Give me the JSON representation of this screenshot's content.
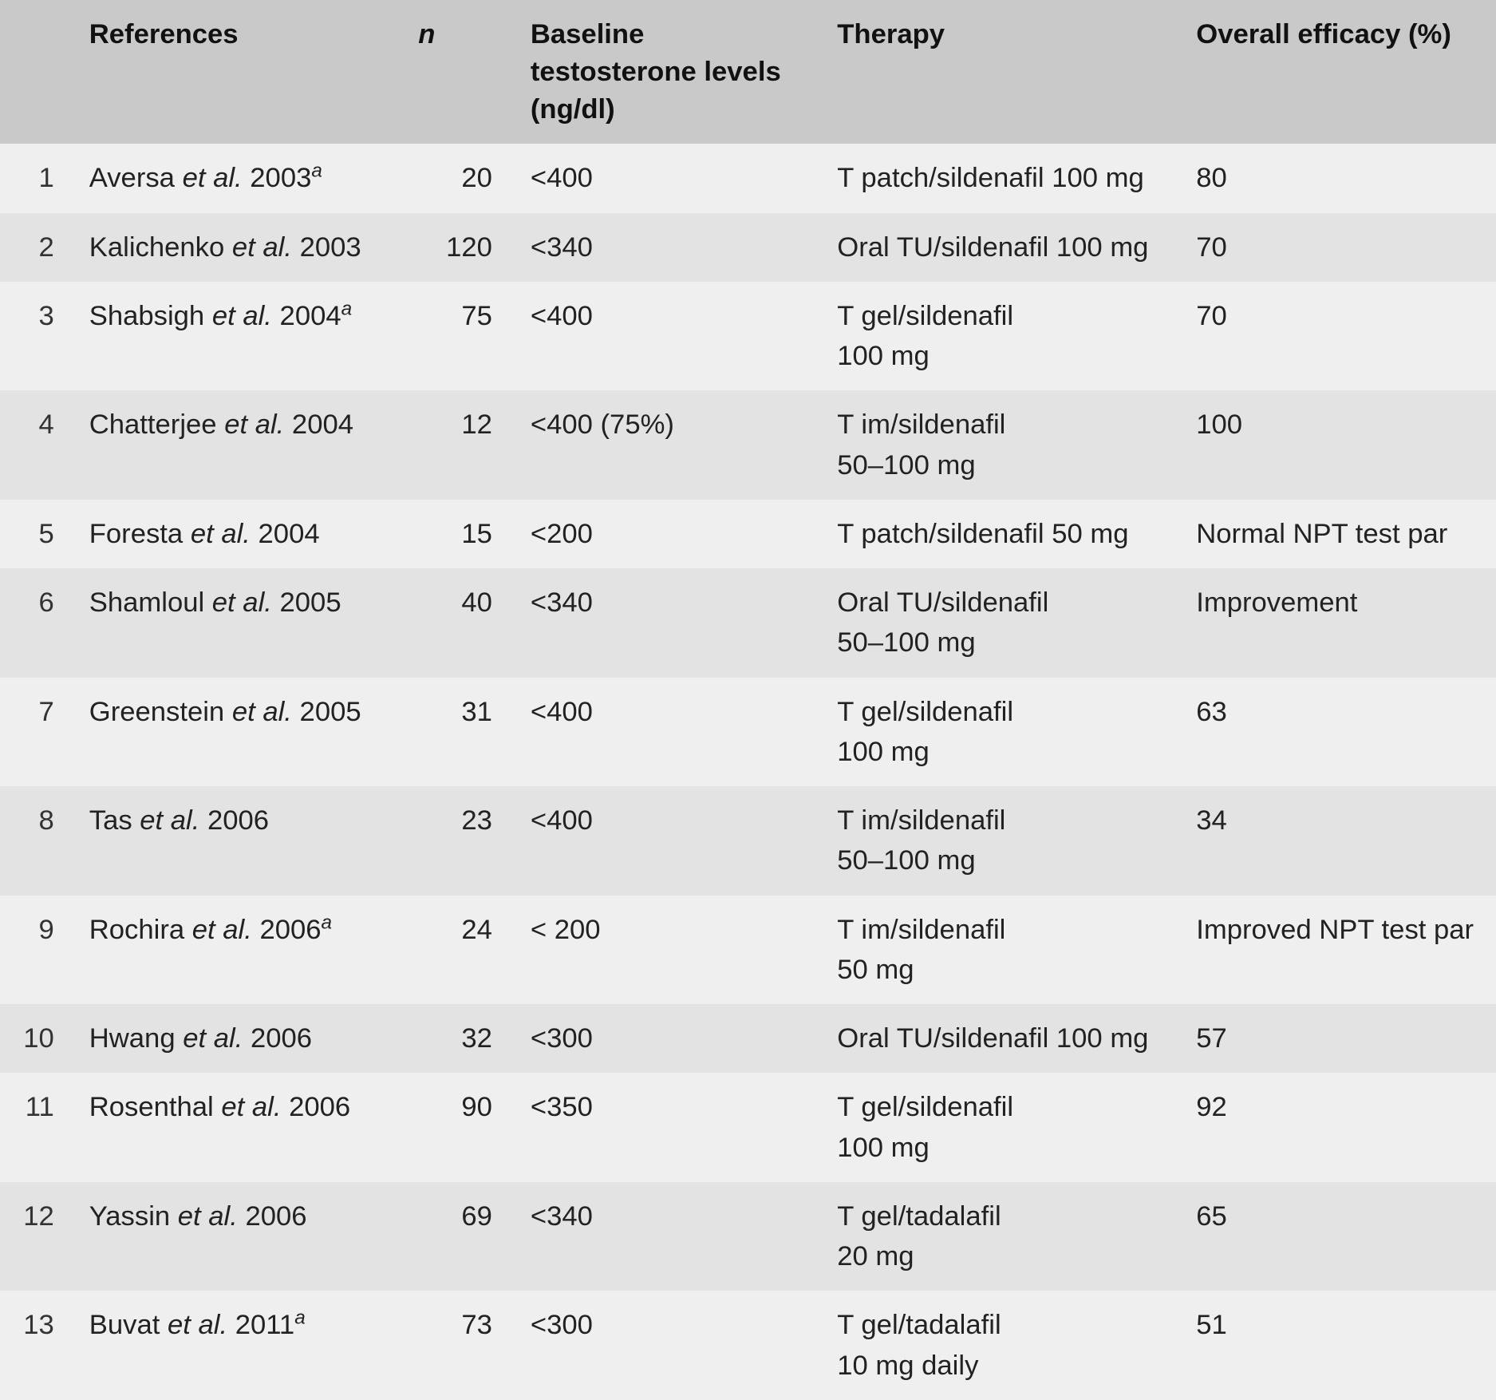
{
  "table": {
    "type": "table",
    "font_family": "Segoe UI / Helvetica Neue",
    "header_bg": "#c9c9c9",
    "row_bg_odd": "#f0eff0",
    "row_bg_even": "#e4e3e4",
    "text_color": "#222222",
    "header_text_color": "#111111",
    "font_size_pt": 26,
    "header_font_weight": 700,
    "body_font_weight": 400,
    "column_widths_pct": [
      5,
      22,
      7.5,
      20.5,
      24,
      21
    ],
    "columns": {
      "idx": "",
      "references": "References",
      "n": "n",
      "baseline": "Baseline testosterone\nlevels (ng/dl)",
      "therapy": "Therapy",
      "efficacy": "Overall efficacy (%)"
    },
    "rows": [
      {
        "idx": "1",
        "ref_author": "Aversa",
        "ref_suffix": " 2003",
        "ref_sup": "a",
        "n": "20",
        "baseline": "<400",
        "therapy": "T patch/sildenafil 100 mg",
        "efficacy": "80"
      },
      {
        "idx": "2",
        "ref_author": "Kalichenko",
        "ref_suffix": " 2003",
        "ref_sup": "",
        "n": "120",
        "baseline": "<340",
        "therapy": "Oral TU/sildenafil 100 mg",
        "efficacy": "70"
      },
      {
        "idx": "3",
        "ref_author": "Shabsigh",
        "ref_suffix": " 2004",
        "ref_sup": "a",
        "n": "75",
        "baseline": "<400",
        "therapy": "T gel/sildenafil\n100 mg",
        "efficacy": "70"
      },
      {
        "idx": "4",
        "ref_author": "Chatterjee",
        "ref_suffix": " 2004",
        "ref_sup": "",
        "n": "12",
        "baseline": "<400 (75%)",
        "therapy": "T im/sildenafil\n50–100 mg",
        "efficacy": "100"
      },
      {
        "idx": "5",
        "ref_author": "Foresta",
        "ref_suffix": " 2004",
        "ref_sup": "",
        "n": "15",
        "baseline": "<200",
        "therapy": "T patch/sildenafil 50 mg",
        "efficacy": "Normal NPT test par"
      },
      {
        "idx": "6",
        "ref_author": "Shamloul",
        "ref_suffix": " 2005",
        "ref_sup": "",
        "n": "40",
        "baseline": "<340",
        "therapy": "Oral TU/sildenafil\n50–100 mg",
        "efficacy": "Improvement"
      },
      {
        "idx": "7",
        "ref_author": "Greenstein",
        "ref_suffix": " 2005",
        "ref_sup": "",
        "n": "31",
        "baseline": "<400",
        "therapy": "T gel/sildenafil\n100 mg",
        "efficacy": "63"
      },
      {
        "idx": "8",
        "ref_author": "Tas",
        "ref_suffix": " 2006",
        "ref_sup": "",
        "n": "23",
        "baseline": "<400",
        "therapy": "T im/sildenafil\n50–100 mg",
        "efficacy": "34"
      },
      {
        "idx": "9",
        "ref_author": "Rochira",
        "ref_suffix": " 2006",
        "ref_sup": "a",
        "n": "24",
        "baseline": "< 200",
        "therapy": "T im/sildenafil\n50 mg",
        "efficacy": "Improved NPT test par"
      },
      {
        "idx": "10",
        "ref_author": "Hwang",
        "ref_suffix": " 2006",
        "ref_sup": "",
        "n": "32",
        "baseline": "<300",
        "therapy": "Oral TU/sildenafil 100 mg",
        "efficacy": "57"
      },
      {
        "idx": "11",
        "ref_author": "Rosenthal",
        "ref_suffix": " 2006",
        "ref_sup": "",
        "n": "90",
        "baseline": "<350",
        "therapy": "T gel/sildenafil\n100 mg",
        "efficacy": "92"
      },
      {
        "idx": "12",
        "ref_author": "Yassin",
        "ref_suffix": " 2006",
        "ref_sup": "",
        "n": "69",
        "baseline": "<340",
        "therapy": "T gel/tadalafil\n20 mg",
        "efficacy": "65"
      },
      {
        "idx": "13",
        "ref_author": "Buvat",
        "ref_suffix": " 2011",
        "ref_sup": "a",
        "n": "73",
        "baseline": "<300",
        "therapy": "T gel/tadalafil\n10 mg daily",
        "efficacy": "51"
      }
    ],
    "etal_text": "et al."
  }
}
